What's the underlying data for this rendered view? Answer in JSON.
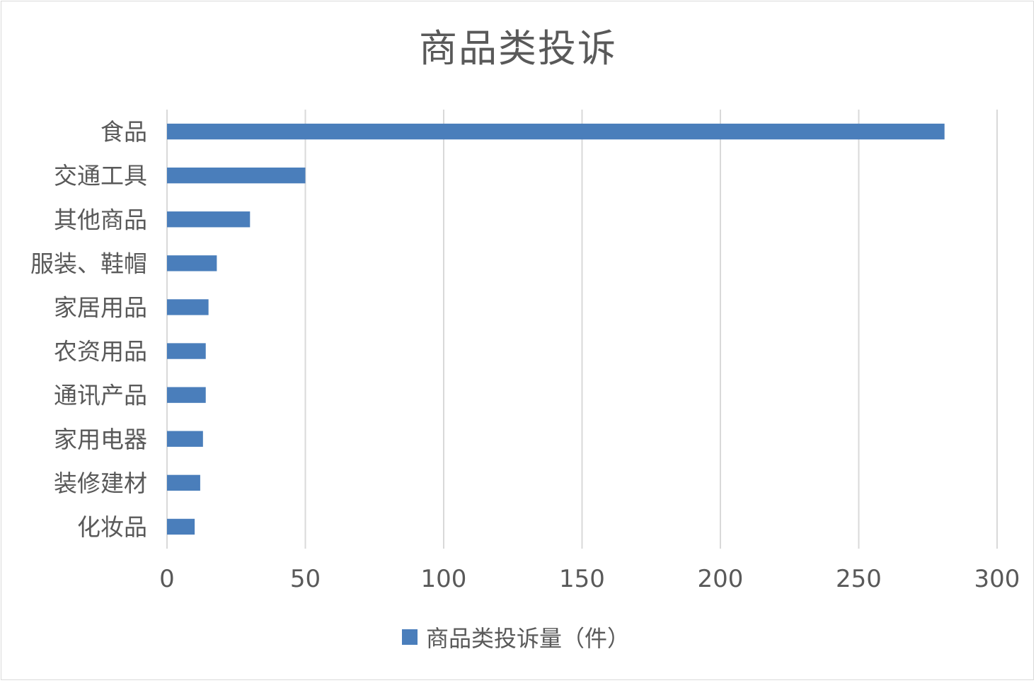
{
  "chart_data": {
    "type": "bar",
    "orientation": "horizontal",
    "title": "商品类投诉",
    "categories": [
      "食品",
      "交通工具",
      "其他商品",
      "服装、鞋帽",
      "家居用品",
      "农资用品",
      "通讯产品",
      "家用电器",
      "装修建材",
      "化妆品"
    ],
    "series": [
      {
        "name": "商品类投诉量（件）",
        "values": [
          281,
          50,
          30,
          18,
          15,
          14,
          14,
          13,
          12,
          10
        ],
        "color": "#4a7ebb"
      }
    ],
    "xlim": [
      0,
      300
    ],
    "x_ticks": [
      "0",
      "50",
      "100",
      "150",
      "200",
      "250",
      "300"
    ],
    "xlabel": "",
    "ylabel": "",
    "grid": "vertical",
    "legend_position": "bottom"
  }
}
